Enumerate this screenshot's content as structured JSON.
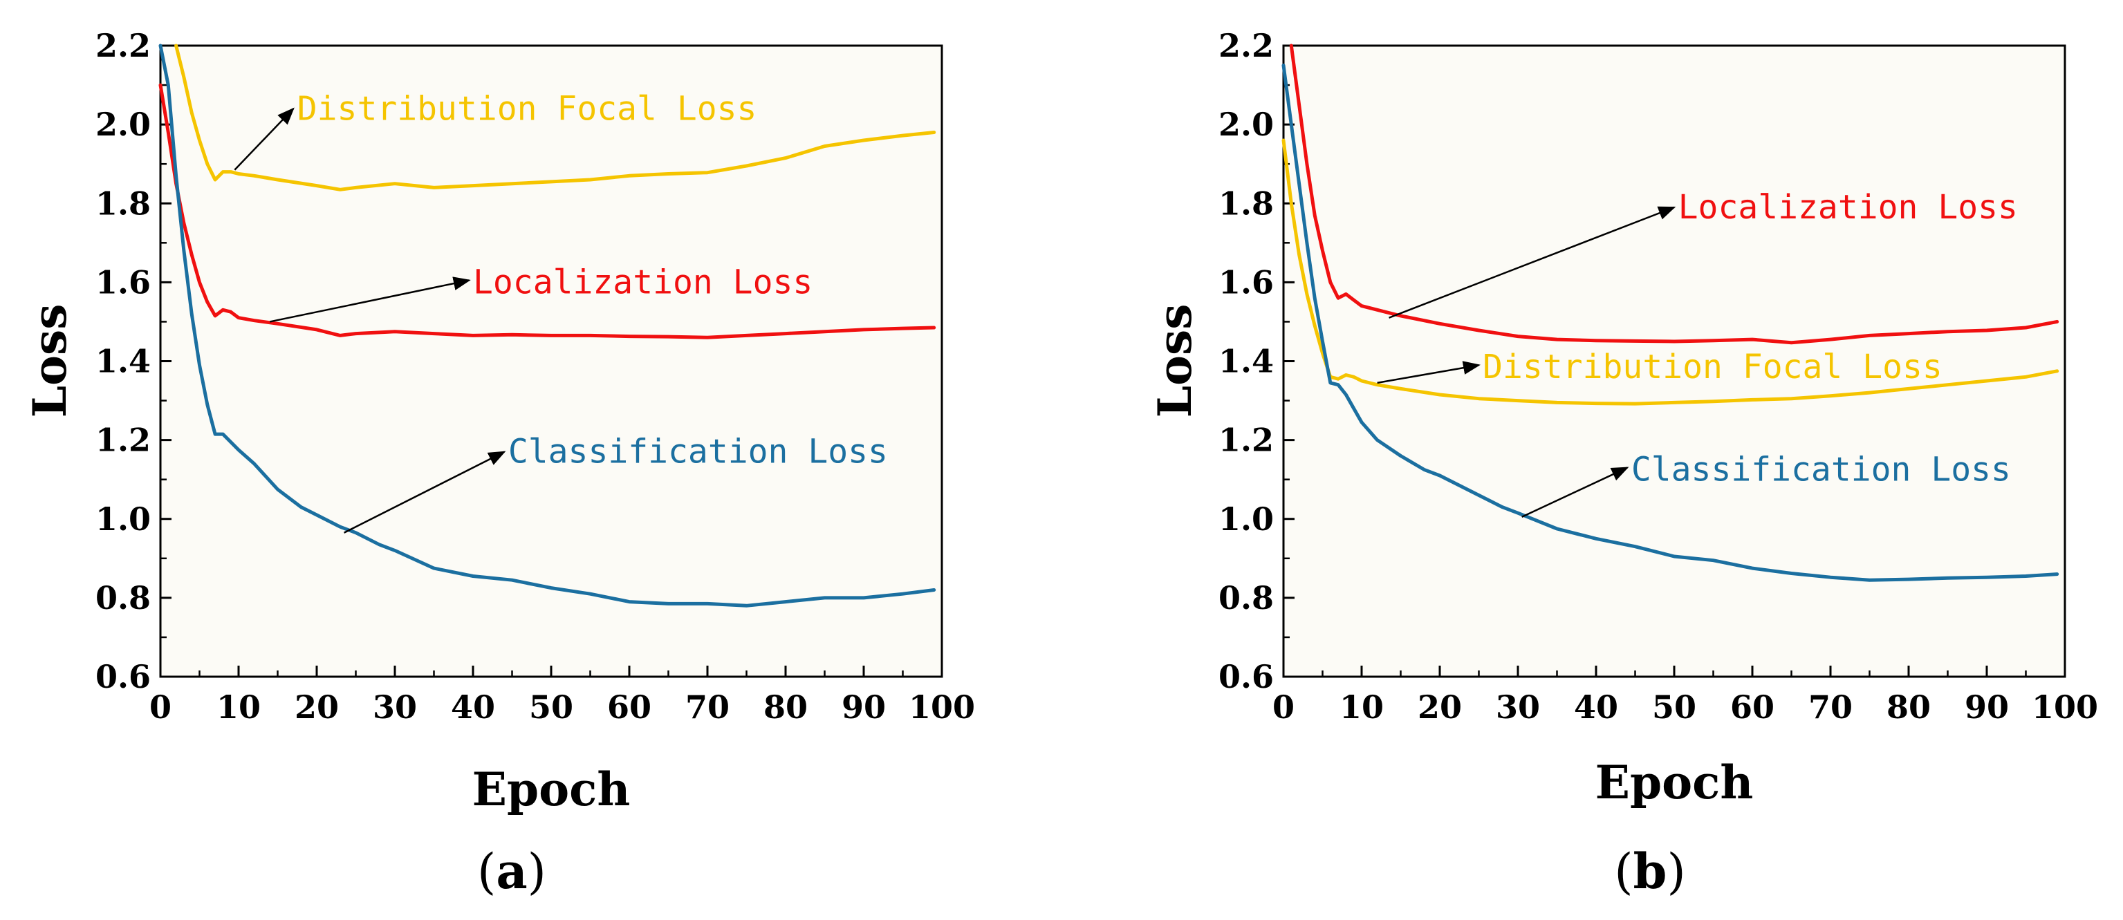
{
  "chart_data": [
    {
      "panel": "(a)",
      "panel_letter": "a",
      "type": "line",
      "xlabel": "Epoch",
      "ylabel": "Loss",
      "xlim": [
        0,
        100
      ],
      "ylim": [
        0.6,
        2.2
      ],
      "xticks": [
        0,
        10,
        20,
        30,
        40,
        50,
        60,
        70,
        80,
        90,
        100
      ],
      "yticks": [
        0.6,
        0.8,
        1.0,
        1.2,
        1.4,
        1.6,
        1.8,
        2.0,
        2.2
      ],
      "ytick_labels": [
        "0.6",
        "0.8",
        "1.0",
        "1.2",
        "1.4",
        "1.6",
        "1.8",
        "2.0",
        "2.2"
      ],
      "series": [
        {
          "name": "Distribution Focal Loss",
          "color": "#F5C400",
          "x": [
            2,
            3,
            4,
            5,
            6,
            7,
            8,
            9,
            10,
            12,
            15,
            20,
            23,
            25,
            30,
            35,
            40,
            45,
            50,
            55,
            60,
            65,
            70,
            75,
            80,
            85,
            90,
            95,
            99
          ],
          "y": [
            2.2,
            2.12,
            2.03,
            1.96,
            1.9,
            1.86,
            1.88,
            1.88,
            1.875,
            1.87,
            1.86,
            1.845,
            1.835,
            1.84,
            1.85,
            1.84,
            1.845,
            1.85,
            1.855,
            1.86,
            1.87,
            1.875,
            1.878,
            1.895,
            1.915,
            1.945,
            1.96,
            1.972,
            1.98
          ]
        },
        {
          "name": "Localization Loss",
          "color": "#F01010",
          "x": [
            0,
            1,
            2,
            3,
            4,
            5,
            6,
            7,
            8,
            9,
            10,
            12,
            15,
            20,
            23,
            25,
            30,
            35,
            40,
            45,
            50,
            55,
            60,
            65,
            70,
            75,
            80,
            85,
            90,
            95,
            99
          ],
          "y": [
            2.1,
            1.98,
            1.85,
            1.75,
            1.67,
            1.6,
            1.55,
            1.515,
            1.53,
            1.525,
            1.51,
            1.503,
            1.495,
            1.48,
            1.465,
            1.47,
            1.475,
            1.47,
            1.465,
            1.467,
            1.465,
            1.465,
            1.463,
            1.462,
            1.46,
            1.465,
            1.47,
            1.475,
            1.48,
            1.483,
            1.485
          ]
        },
        {
          "name": "Classification Loss",
          "color": "#1B6FA0",
          "x": [
            0,
            1,
            2,
            3,
            4,
            5,
            6,
            7,
            8,
            9,
            10,
            12,
            15,
            18,
            20,
            23,
            25,
            28,
            30,
            35,
            40,
            45,
            50,
            55,
            60,
            65,
            70,
            75,
            80,
            85,
            90,
            95,
            99
          ],
          "y": [
            2.2,
            2.1,
            1.87,
            1.68,
            1.52,
            1.39,
            1.29,
            1.215,
            1.215,
            1.195,
            1.175,
            1.14,
            1.075,
            1.03,
            1.01,
            0.98,
            0.965,
            0.935,
            0.92,
            0.875,
            0.855,
            0.845,
            0.825,
            0.81,
            0.79,
            0.785,
            0.785,
            0.78,
            0.79,
            0.8,
            0.8,
            0.81,
            0.82
          ]
        }
      ],
      "annotations": [
        {
          "text": "Distribution Focal Loss",
          "series": 0,
          "label_x": 17.5,
          "label_y": 2.04,
          "from": [
            9.5,
            1.885
          ],
          "to": [
            17,
            2.04
          ]
        },
        {
          "text": "Localization Loss",
          "series": 1,
          "label_x": 40,
          "label_y": 1.6,
          "from": [
            14,
            1.5
          ],
          "to": [
            39.5,
            1.605
          ]
        },
        {
          "text": "Classification Loss",
          "series": 2,
          "label_x": 44.5,
          "label_y": 1.17,
          "from": [
            23.5,
            0.965
          ],
          "to": [
            44,
            1.17
          ]
        }
      ]
    },
    {
      "panel": "(b)",
      "panel_letter": "b",
      "type": "line",
      "xlabel": "Epoch",
      "ylabel": "Loss",
      "xlim": [
        0,
        100
      ],
      "ylim": [
        0.6,
        2.2
      ],
      "xticks": [
        0,
        10,
        20,
        30,
        40,
        50,
        60,
        70,
        80,
        90,
        100
      ],
      "yticks": [
        0.6,
        0.8,
        1.0,
        1.2,
        1.4,
        1.6,
        1.8,
        2.0,
        2.2
      ],
      "ytick_labels": [
        "0.6",
        "0.8",
        "1.0",
        "1.2",
        "1.4",
        "1.6",
        "1.8",
        "2.0",
        "2.2"
      ],
      "series": [
        {
          "name": "Localization Loss",
          "color": "#F01010",
          "x": [
            1,
            2,
            3,
            4,
            5,
            6,
            7,
            8,
            9,
            10,
            12,
            15,
            20,
            25,
            30,
            35,
            40,
            45,
            50,
            55,
            60,
            65,
            70,
            75,
            80,
            85,
            90,
            95,
            99
          ],
          "y": [
            2.2,
            2.05,
            1.9,
            1.77,
            1.68,
            1.6,
            1.56,
            1.57,
            1.555,
            1.54,
            1.53,
            1.515,
            1.495,
            1.478,
            1.463,
            1.455,
            1.452,
            1.451,
            1.45,
            1.452,
            1.455,
            1.447,
            1.455,
            1.465,
            1.47,
            1.475,
            1.478,
            1.485,
            1.5
          ]
        },
        {
          "name": "Distribution Focal Loss",
          "color": "#F5C400",
          "x": [
            0,
            1,
            2,
            3,
            4,
            5,
            6,
            7,
            8,
            9,
            10,
            12,
            15,
            20,
            25,
            30,
            35,
            40,
            45,
            50,
            55,
            60,
            65,
            70,
            75,
            80,
            85,
            90,
            95,
            99
          ],
          "y": [
            1.96,
            1.8,
            1.67,
            1.57,
            1.49,
            1.42,
            1.36,
            1.355,
            1.365,
            1.36,
            1.35,
            1.34,
            1.33,
            1.315,
            1.305,
            1.3,
            1.295,
            1.293,
            1.292,
            1.295,
            1.298,
            1.302,
            1.305,
            1.312,
            1.32,
            1.33,
            1.34,
            1.35,
            1.36,
            1.375
          ]
        },
        {
          "name": "Classification Loss",
          "color": "#1B6FA0",
          "x": [
            0,
            1,
            2,
            3,
            4,
            5,
            6,
            7,
            8,
            9,
            10,
            12,
            15,
            18,
            20,
            25,
            28,
            30,
            35,
            40,
            45,
            50,
            55,
            60,
            65,
            70,
            75,
            80,
            85,
            90,
            95,
            99
          ],
          "y": [
            2.15,
            2.0,
            1.85,
            1.7,
            1.56,
            1.45,
            1.345,
            1.34,
            1.315,
            1.28,
            1.245,
            1.2,
            1.16,
            1.125,
            1.11,
            1.06,
            1.03,
            1.015,
            0.975,
            0.95,
            0.93,
            0.905,
            0.895,
            0.875,
            0.862,
            0.852,
            0.845,
            0.847,
            0.85,
            0.852,
            0.855,
            0.86
          ]
        }
      ],
      "annotations": [
        {
          "text": "Localization Loss",
          "series": 0,
          "label_x": 50.5,
          "label_y": 1.79,
          "from": [
            13.5,
            1.51
          ],
          "to": [
            50,
            1.79
          ]
        },
        {
          "text": "Distribution Focal Loss",
          "series": 1,
          "label_x": 25.5,
          "label_y": 1.385,
          "from": [
            12,
            1.345
          ],
          "to": [
            25,
            1.39
          ]
        },
        {
          "text": "Classification Loss",
          "series": 2,
          "label_x": 44.5,
          "label_y": 1.125,
          "from": [
            30.5,
            1.005
          ],
          "to": [
            44,
            1.13
          ]
        }
      ]
    }
  ]
}
